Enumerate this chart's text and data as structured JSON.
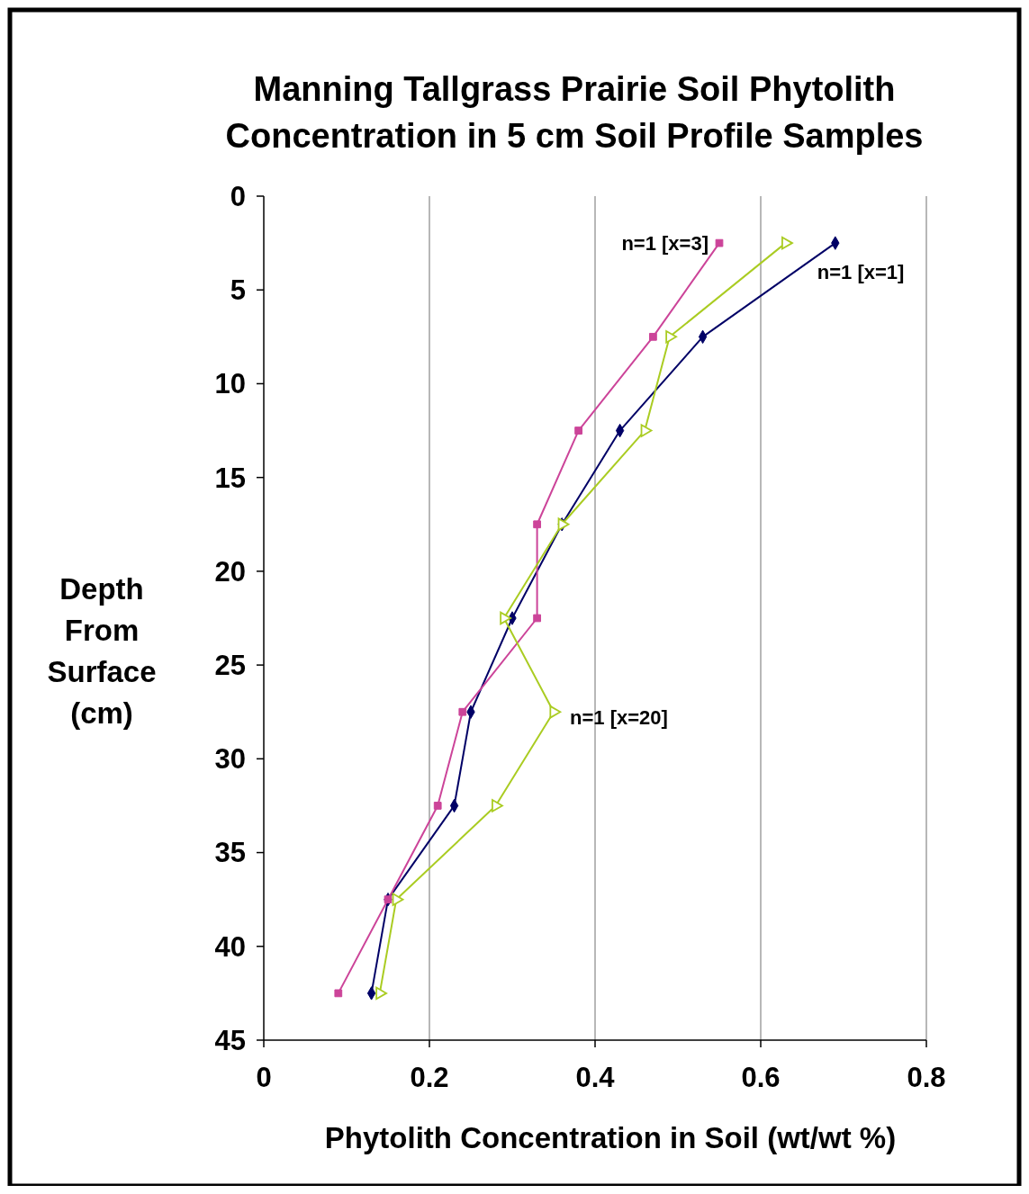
{
  "chart_data": {
    "type": "line",
    "title": "Manning Tallgrass Prairie Soil Phytolith Concentration in 5 cm Soil Profile Samples",
    "xlabel": "Phytolith Concentration in Soil (wt/wt %)",
    "ylabel": "Depth From Surface (cm)",
    "xlim": [
      0,
      0.8
    ],
    "xticks": [
      0,
      0.2,
      0.4,
      0.6,
      0.8
    ],
    "ylim": [
      45,
      0
    ],
    "yticks": [
      0,
      5,
      10,
      15,
      20,
      25,
      30,
      35,
      40,
      45
    ],
    "grid": "x",
    "line_style": "solid",
    "series": [
      {
        "color": "#000066",
        "marker": "diamond",
        "x": [
          0.69,
          0.53,
          0.43,
          0.36,
          0.3,
          0.25,
          0.23,
          0.15,
          0.13
        ],
        "values": [
          2.5,
          7.5,
          12.5,
          17.5,
          22.5,
          27.5,
          32.5,
          37.5,
          42.5
        ]
      },
      {
        "color": "#cc4499",
        "marker": "square",
        "x": [
          0.55,
          0.47,
          0.38,
          0.33,
          0.33,
          0.24,
          0.21,
          0.15,
          0.09
        ],
        "values": [
          2.5,
          7.5,
          12.5,
          17.5,
          22.5,
          27.5,
          32.5,
          37.5,
          42.5
        ]
      },
      {
        "color": "#aacc22",
        "marker": "triangle",
        "x": [
          0.63,
          0.49,
          0.46,
          0.36,
          0.29,
          0.35,
          0.28,
          0.16,
          0.14
        ],
        "values": [
          2.5,
          7.5,
          12.5,
          17.5,
          22.5,
          27.5,
          32.5,
          37.5,
          42.5
        ]
      }
    ],
    "annotations": [
      {
        "text": "n=1 [x=3]",
        "x": 0.55,
        "y": 2.5
      },
      {
        "text": "n=1 [x=1]",
        "x": 0.69,
        "y": 2.5
      },
      {
        "text": "n=1 [x=20]",
        "x": 0.35,
        "y": 27.5
      }
    ]
  }
}
